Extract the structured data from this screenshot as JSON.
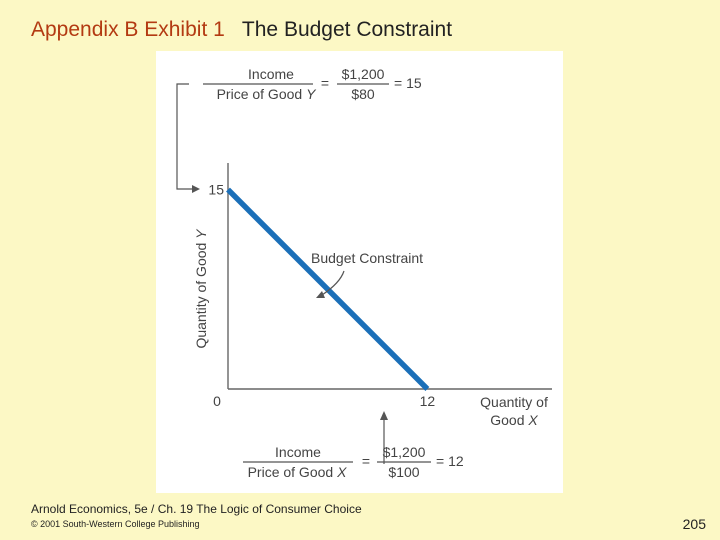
{
  "slide": {
    "title_prefix": "Appendix B Exhibit 1",
    "title_main": "The Budget Constraint",
    "footer_source": "Arnold Economics, 5e / Ch. 19  The Logic of Consumer Choice",
    "footer_copyright": "© 2001 South-Western College Publishing",
    "page_number": "205"
  },
  "colors": {
    "background": "#fcf8c5",
    "title_accent": "#b33a12",
    "line": "#1b6fb8",
    "text": "#444444"
  },
  "chart_data": {
    "type": "line",
    "title": "",
    "xlabel_line1": "Quantity of",
    "xlabel_line2": "Good",
    "xlabel_var": "X",
    "ylabel": "Quantity of Good",
    "ylabel_var": "Y",
    "origin_label": "0",
    "x_tick_label": "12",
    "y_tick_label": "15",
    "xlim": [
      0,
      19.5
    ],
    "ylim": [
      0,
      17
    ],
    "series": [
      {
        "name": "Budget Constraint",
        "x": [
          0,
          12
        ],
        "y": [
          15,
          0
        ]
      }
    ],
    "annotations": {
      "series_label": "Budget Constraint",
      "y_intercept_formula": {
        "numerator": "Income",
        "denominator": "Price of Good",
        "denominator_var": "Y",
        "equals": "=",
        "value_num": "$1,200",
        "value_den": "$80",
        "result": "= 15"
      },
      "x_intercept_formula": {
        "numerator": "Income",
        "denominator": "Price of Good",
        "denominator_var": "X",
        "equals": "=",
        "value_num": "$1,200",
        "value_den": "$100",
        "result": "= 12"
      }
    }
  }
}
